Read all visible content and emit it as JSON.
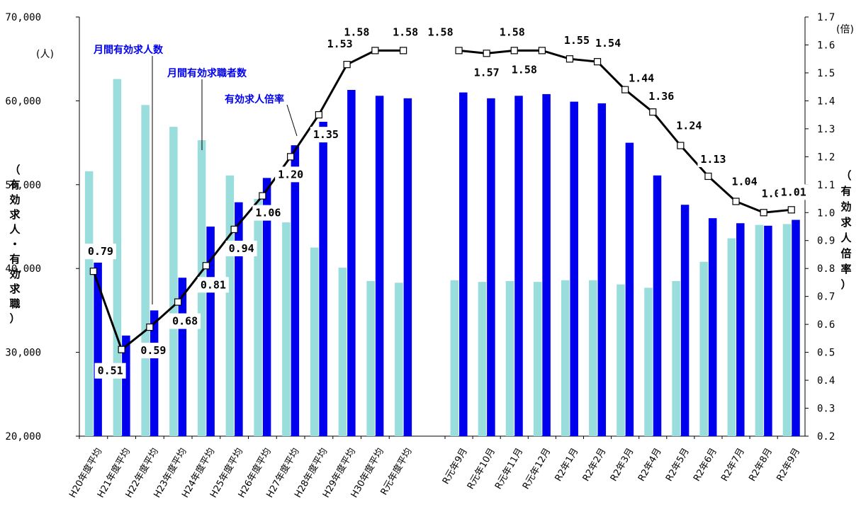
{
  "chart_data": {
    "type": "bar",
    "categories": [
      "H20年度平均",
      "H21年度平均",
      "H22年度平均",
      "H23年度平均",
      "H24年度平均",
      "H25年度平均",
      "H26年度平均",
      "H27年度平均",
      "H28年度平均",
      "H29年度平均",
      "H30年度平均",
      "R元年度平均",
      "R元年9月",
      "R元年10月",
      "R元年11月",
      "R元年12月",
      "R2年1月",
      "R2年2月",
      "R2年3月",
      "R2年4月",
      "R2年5月",
      "R2年6月",
      "R2年7月",
      "R2年8月",
      "R2年9月"
    ],
    "series": [
      {
        "name": "月間有効求人数",
        "type": "bar",
        "axis": "left",
        "color": "#99dddd",
        "values": [
          51600,
          62600,
          59500,
          56900,
          55300,
          51100,
          48300,
          45500,
          42500,
          40100,
          38500,
          38300,
          38600,
          38400,
          38500,
          38400,
          38600,
          38600,
          38100,
          37700,
          38500,
          40800,
          43600,
          45200,
          45300
        ]
      },
      {
        "name": "月間有効求職者数",
        "type": "bar",
        "axis": "left",
        "color": "#0000ee",
        "values": [
          40700,
          32000,
          35000,
          38900,
          45000,
          47900,
          50800,
          54700,
          57500,
          61300,
          60600,
          60300,
          61000,
          60300,
          60600,
          60800,
          59900,
          59700,
          55000,
          51100,
          47600,
          46000,
          45400,
          45100,
          45800
        ]
      },
      {
        "name": "有効求人倍率",
        "type": "line",
        "axis": "right",
        "color": "#000000",
        "values": [
          0.79,
          0.51,
          0.59,
          0.68,
          0.81,
          0.94,
          1.06,
          1.2,
          1.35,
          1.53,
          1.58,
          1.58,
          1.58,
          1.57,
          1.58,
          1.58,
          1.55,
          1.54,
          1.44,
          1.36,
          1.24,
          1.13,
          1.04,
          1.0,
          1.01
        ],
        "labels": [
          "0.79",
          "0.51",
          "0.59",
          "0.68",
          "0.81",
          "0.94",
          "1.06",
          "1.20",
          "1.35",
          "1.53",
          "1.58",
          "1.58",
          "1.58",
          "1.57",
          "1.58",
          "1.58",
          "1.55",
          "1.54",
          "1.44",
          "1.36",
          "1.24",
          "1.13",
          "1.04",
          "1.00",
          "1.01"
        ]
      }
    ],
    "y_left": {
      "min": 20000,
      "max": 70000,
      "ticks": [
        "20,000",
        "30,000",
        "40,000",
        "50,000",
        "60,000",
        "70,000"
      ],
      "unit": "(人)",
      "title": [
        "（",
        "有",
        "効",
        "求",
        "人",
        "・",
        "有",
        "効",
        "求",
        "職",
        "）"
      ]
    },
    "y_right": {
      "min": 0.2,
      "max": 1.7,
      "ticks": [
        "0.2",
        "0.3",
        "0.4",
        "0.5",
        "0.6",
        "0.7",
        "0.8",
        "0.9",
        "1.0",
        "1.1",
        "1.2",
        "1.3",
        "1.4",
        "1.5",
        "1.6",
        "1.7"
      ],
      "unit": "(倍)",
      "title": [
        "（",
        "有",
        "効",
        "求",
        "人",
        "倍",
        "率",
        "）"
      ]
    },
    "annotations": [
      "月間有効求人数",
      "月間有効求職者数",
      "有効求人倍率"
    ],
    "grid": false,
    "legend": "inline-callouts"
  }
}
